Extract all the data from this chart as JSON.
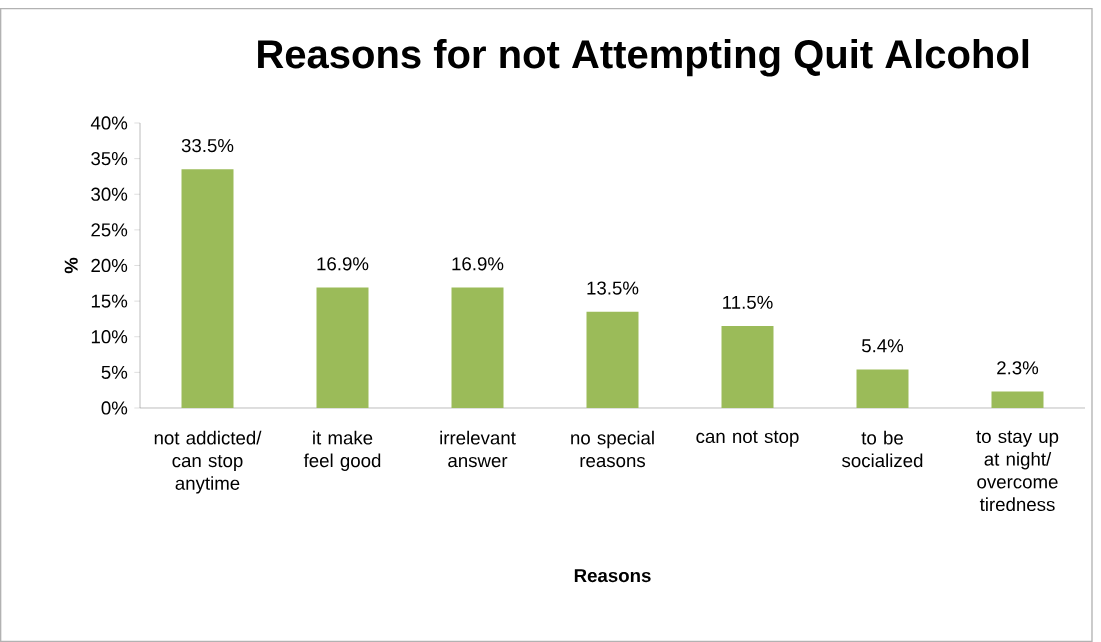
{
  "chart_data": {
    "type": "bar",
    "title": "Reasons for not Attempting Quit Alcohol",
    "xlabel": "Reasons",
    "ylabel": "%",
    "categories": [
      "not addicted/ can stop anytime",
      "it make feel good",
      "irrelevant answer",
      "no special reasons",
      "can not stop",
      "to be socialized",
      "to stay up at night/ overcome tiredness"
    ],
    "values": [
      33.5,
      16.9,
      16.9,
      13.5,
      11.5,
      5.4,
      2.3
    ],
    "value_labels": [
      "33.5%",
      "16.9%",
      "16.9%",
      "13.5%",
      "11.5%",
      "5.4%",
      "2.3%"
    ],
    "color": "#9bbb59",
    "ylim": [
      0,
      40
    ],
    "yticks": [
      {
        "value": 0,
        "label": "0%"
      },
      {
        "value": 5,
        "label": "5%"
      },
      {
        "value": 10,
        "label": "10%"
      },
      {
        "value": 15,
        "label": "15%"
      },
      {
        "value": 20,
        "label": "20%"
      },
      {
        "value": 25,
        "label": "25%"
      },
      {
        "value": 30,
        "label": "30%"
      },
      {
        "value": 35,
        "label": "35%"
      },
      {
        "value": 40,
        "label": "40%"
      }
    ],
    "grid": false
  }
}
